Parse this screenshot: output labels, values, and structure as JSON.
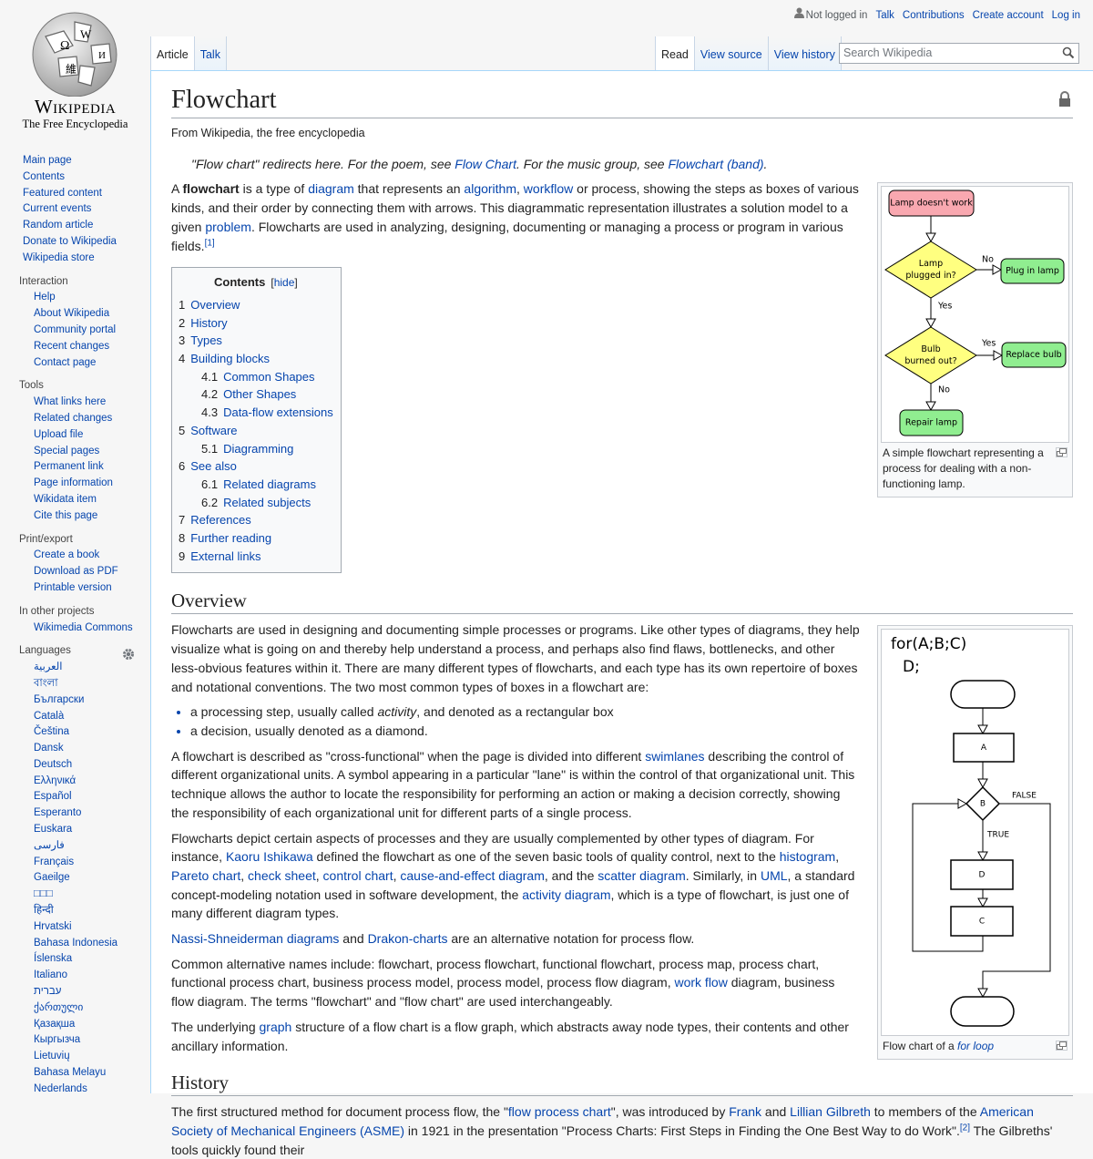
{
  "personal_tools": [
    "Not logged in",
    "Talk",
    "Contributions",
    "Create account",
    "Log in"
  ],
  "logo": {
    "wordmark": "Wikipedia",
    "tagline": "The Free Encyclopedia"
  },
  "tabs_left": [
    "Article",
    "Talk"
  ],
  "tabs_right": [
    "Read",
    "View source",
    "View history"
  ],
  "search_placeholder": "Search Wikipedia",
  "sidebar": {
    "navigation": [
      "Main page",
      "Contents",
      "Featured content",
      "Current events",
      "Random article",
      "Donate to Wikipedia",
      "Wikipedia store"
    ],
    "sections": [
      {
        "heading": "Interaction",
        "items": [
          "Help",
          "About Wikipedia",
          "Community portal",
          "Recent changes",
          "Contact page"
        ]
      },
      {
        "heading": "Tools",
        "items": [
          "What links here",
          "Related changes",
          "Upload file",
          "Special pages",
          "Permanent link",
          "Page information",
          "Wikidata item",
          "Cite this page"
        ]
      },
      {
        "heading": "Print/export",
        "items": [
          "Create a book",
          "Download as PDF",
          "Printable version"
        ]
      },
      {
        "heading": "In other projects",
        "items": [
          "Wikimedia Commons"
        ]
      },
      {
        "heading": "Languages",
        "items": [
          "العربية",
          "বাংলা",
          "Български",
          "Català",
          "Čeština",
          "Dansk",
          "Deutsch",
          "Ελληνικά",
          "Español",
          "Esperanto",
          "Euskara",
          "فارسی",
          "Français",
          "Gaeilge",
          "□□□",
          "हिन्दी",
          "Hrvatski",
          "Bahasa Indonesia",
          "Íslenska",
          "Italiano",
          "עברית",
          "ქართული",
          "Қазақша",
          "Кыргызча",
          "Lietuvių",
          "Bahasa Melayu",
          "Nederlands"
        ]
      }
    ]
  },
  "article": {
    "title": "Flowchart",
    "tagline": "From Wikipedia, the free encyclopedia",
    "hatnote": [
      "\"Flow chart\" redirects here. For the poem, see ",
      {
        "text": "Flow Chart",
        "style": "link"
      },
      ". For the music group, see ",
      {
        "text": "Flowchart (band)",
        "style": "link"
      },
      "."
    ],
    "intro": [
      "A ",
      {
        "text": "flowchart",
        "style": "bold"
      },
      " is a type of ",
      {
        "text": "diagram",
        "style": "link"
      },
      " that represents an ",
      {
        "text": "algorithm",
        "style": "link"
      },
      ", ",
      {
        "text": "workflow",
        "style": "link"
      },
      " or process, showing the steps as boxes of various kinds, and their order by connecting them with arrows. This diagrammatic representation illustrates a solution model to a given ",
      {
        "text": "problem",
        "style": "link"
      },
      ". Flowcharts are used in analyzing, designing, documenting or managing a process or program in various fields.",
      {
        "text": "[1]",
        "style": "ref"
      }
    ],
    "figure_lamp": {
      "nodes": [
        {
          "lines": [
            "Lamp doesn't work"
          ],
          "shape": "terminal",
          "color": "#f9a8b0"
        },
        {
          "lines": [
            "Lamp",
            "plugged in?"
          ],
          "shape": "decision",
          "color": "#ffff80"
        },
        {
          "lines": [
            "Plug in lamp"
          ],
          "shape": "terminal",
          "color": "#90ee90"
        },
        {
          "lines": [
            "Bulb",
            "burned out?"
          ],
          "shape": "decision",
          "color": "#ffff80"
        },
        {
          "lines": [
            "Replace bulb"
          ],
          "shape": "terminal",
          "color": "#90ee90"
        },
        {
          "lines": [
            "Repair lamp"
          ],
          "shape": "terminal",
          "color": "#90ee90"
        }
      ],
      "edge_labels": [
        "No",
        "Yes",
        "Yes",
        "No"
      ],
      "caption": [
        "A simple flowchart representing a process for dealing with a non-functioning lamp."
      ]
    },
    "toc": {
      "title": "Contents",
      "toggle": [
        "[",
        {
          "text": "hide",
          "style": "link"
        },
        "]"
      ],
      "items": [
        {
          "number": "1",
          "text": "Overview"
        },
        {
          "number": "2",
          "text": "History"
        },
        {
          "number": "3",
          "text": "Types"
        },
        {
          "number": "4",
          "text": "Building blocks",
          "children": [
            {
              "number": "4.1",
              "text": "Common Shapes"
            },
            {
              "number": "4.2",
              "text": "Other Shapes"
            },
            {
              "number": "4.3",
              "text": "Data-flow extensions"
            }
          ]
        },
        {
          "number": "5",
          "text": "Software",
          "children": [
            {
              "number": "5.1",
              "text": "Diagramming"
            }
          ]
        },
        {
          "number": "6",
          "text": "See also",
          "children": [
            {
              "number": "6.1",
              "text": "Related diagrams"
            },
            {
              "number": "6.2",
              "text": "Related subjects"
            }
          ]
        },
        {
          "number": "7",
          "text": "References"
        },
        {
          "number": "8",
          "text": "Further reading"
        },
        {
          "number": "9",
          "text": "External links"
        }
      ]
    },
    "overview": {
      "heading": "Overview",
      "figure_loop": {
        "code": [
          "for(A;B;C)",
          "D;"
        ],
        "nodes": [
          "A",
          "B",
          "D",
          "C"
        ],
        "edge_labels": [
          "FALSE",
          "TRUE"
        ],
        "caption": [
          "Flow chart of a ",
          {
            "text": "for loop",
            "style": "italic-link"
          }
        ]
      },
      "blocks": [
        {
          "kind": "p",
          "runs": [
            "Flowcharts are used in designing and documenting simple processes or programs. Like other types of diagrams, they help visualize what is going on and thereby help understand a process, and perhaps also find flaws, bottlenecks, and other less-obvious features within it. There are many different types of flowcharts, and each type has its own repertoire of boxes and notational conventions. The two most common types of boxes in a flowchart are:"
          ]
        },
        {
          "kind": "ul",
          "items": [
            [
              "a processing step, usually called ",
              {
                "text": "activity",
                "style": "italic"
              },
              ", and denoted as a rectangular box"
            ],
            [
              "a decision, usually denoted as a diamond."
            ]
          ]
        },
        {
          "kind": "p",
          "runs": [
            "A flowchart is described as \"cross-functional\" when the page is divided into different ",
            {
              "text": "swimlanes",
              "style": "link"
            },
            " describing the control of different organizational units. A symbol appearing in a particular \"lane\" is within the control of that organizational unit. This technique allows the author to locate the responsibility for performing an action or making a decision correctly, showing the responsibility of each organizational unit for different parts of a single process."
          ]
        },
        {
          "kind": "p",
          "runs": [
            "Flowcharts depict certain aspects of processes and they are usually complemented by other types of diagram. For instance, ",
            {
              "text": "Kaoru Ishikawa",
              "style": "link"
            },
            " defined the flowchart as one of the seven basic tools of quality control, next to the ",
            {
              "text": "histogram",
              "style": "link"
            },
            ", ",
            {
              "text": "Pareto chart",
              "style": "link"
            },
            ", ",
            {
              "text": "check sheet",
              "style": "link"
            },
            ", ",
            {
              "text": "control chart",
              "style": "link"
            },
            ", ",
            {
              "text": "cause-and-effect diagram",
              "style": "link"
            },
            ", and the ",
            {
              "text": "scatter diagram",
              "style": "link"
            },
            ". Similarly, in ",
            {
              "text": "UML",
              "style": "link"
            },
            ", a standard concept-modeling notation used in software development, the ",
            {
              "text": "activity diagram",
              "style": "link"
            },
            ", which is a type of flowchart, is just one of many different diagram types."
          ]
        },
        {
          "kind": "p",
          "runs": [
            {
              "text": "Nassi-Shneiderman diagrams",
              "style": "link"
            },
            " and ",
            {
              "text": "Drakon-charts",
              "style": "link"
            },
            " are an alternative notation for process flow."
          ]
        },
        {
          "kind": "p",
          "runs": [
            "Common alternative names include: flowchart, process flowchart, functional flowchart, process map, process chart, functional process chart, business process model, process model, process flow diagram, ",
            {
              "text": "work flow",
              "style": "link"
            },
            " diagram, business flow diagram. The terms \"flowchart\" and \"flow chart\" are used interchangeably."
          ]
        },
        {
          "kind": "p",
          "runs": [
            "The underlying ",
            {
              "text": "graph",
              "style": "link"
            },
            " structure of a flow chart is a flow graph, which abstracts away node types, their contents and other ancillary information."
          ]
        }
      ]
    },
    "history": {
      "heading": "History",
      "blocks": [
        {
          "kind": "p",
          "runs": [
            "The first structured method for document process flow, the \"",
            {
              "text": "flow process chart",
              "style": "link"
            },
            "\", was introduced by ",
            {
              "text": "Frank",
              "style": "link"
            },
            " and ",
            {
              "text": "Lillian Gilbreth",
              "style": "link"
            },
            " to members of the ",
            {
              "text": "American Society of Mechanical Engineers (ASME)",
              "style": "link"
            },
            " in 1921 in the presentation \"Process Charts: First Steps in Finding the One Best Way to do Work\".",
            {
              "text": "[2]",
              "style": "ref"
            },
            " The Gilbreths' tools quickly found their"
          ]
        }
      ]
    }
  }
}
